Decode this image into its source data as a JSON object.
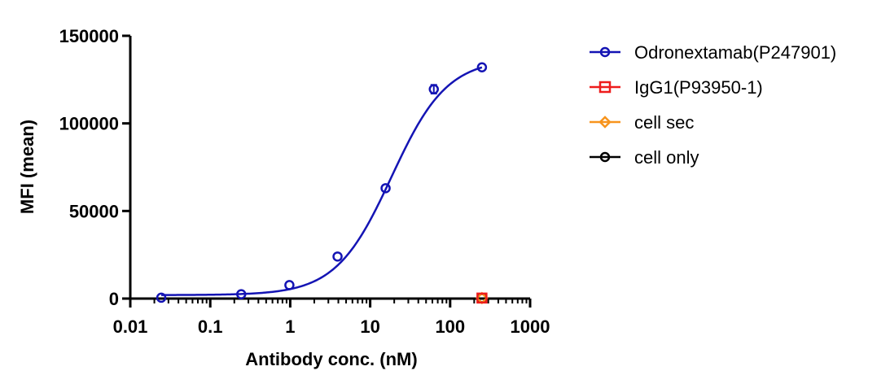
{
  "chart_data": {
    "type": "scatter",
    "title": "",
    "xlabel": "Antibody conc. (nM)",
    "ylabel": "MFI (mean)",
    "x_scale": "log",
    "xlim": [
      0.01,
      1000
    ],
    "ylim": [
      0,
      150000
    ],
    "x_ticks": [
      0.01,
      0.1,
      1,
      10,
      100,
      1000
    ],
    "x_tick_labels": [
      "0.01",
      "0.1",
      "1",
      "10",
      "100",
      "1000"
    ],
    "y_ticks": [
      0,
      50000,
      100000,
      150000
    ],
    "y_tick_labels": [
      "0",
      "50000",
      "100000",
      "150000"
    ],
    "grid": false,
    "legend_position": "right",
    "series": [
      {
        "name": "Odronextamab(P247901)",
        "color": "#1414b4",
        "marker": "circle",
        "x": [
          0.0244,
          0.244,
          0.977,
          3.91,
          15.6,
          62.5,
          250
        ],
        "y": [
          500,
          2500,
          7700,
          24000,
          63000,
          119500,
          132000
        ],
        "error": [
          0,
          0,
          0,
          0,
          0,
          2500,
          0
        ],
        "fit_curve": {
          "bottom": 2000,
          "top": 137000,
          "ec50": 18.5,
          "hill": 1.25
        }
      },
      {
        "name": "IgG1(P93950-1)",
        "color": "#ee1c1c",
        "marker": "square",
        "x": [
          250
        ],
        "y": [
          300
        ]
      },
      {
        "name": "cell sec",
        "color": "#f7941d",
        "marker": "diamond",
        "x": [
          250
        ],
        "y": [
          300
        ]
      },
      {
        "name": "cell only",
        "color": "#000000",
        "marker": "circle",
        "x": [
          250
        ],
        "y": [
          300
        ]
      }
    ]
  }
}
